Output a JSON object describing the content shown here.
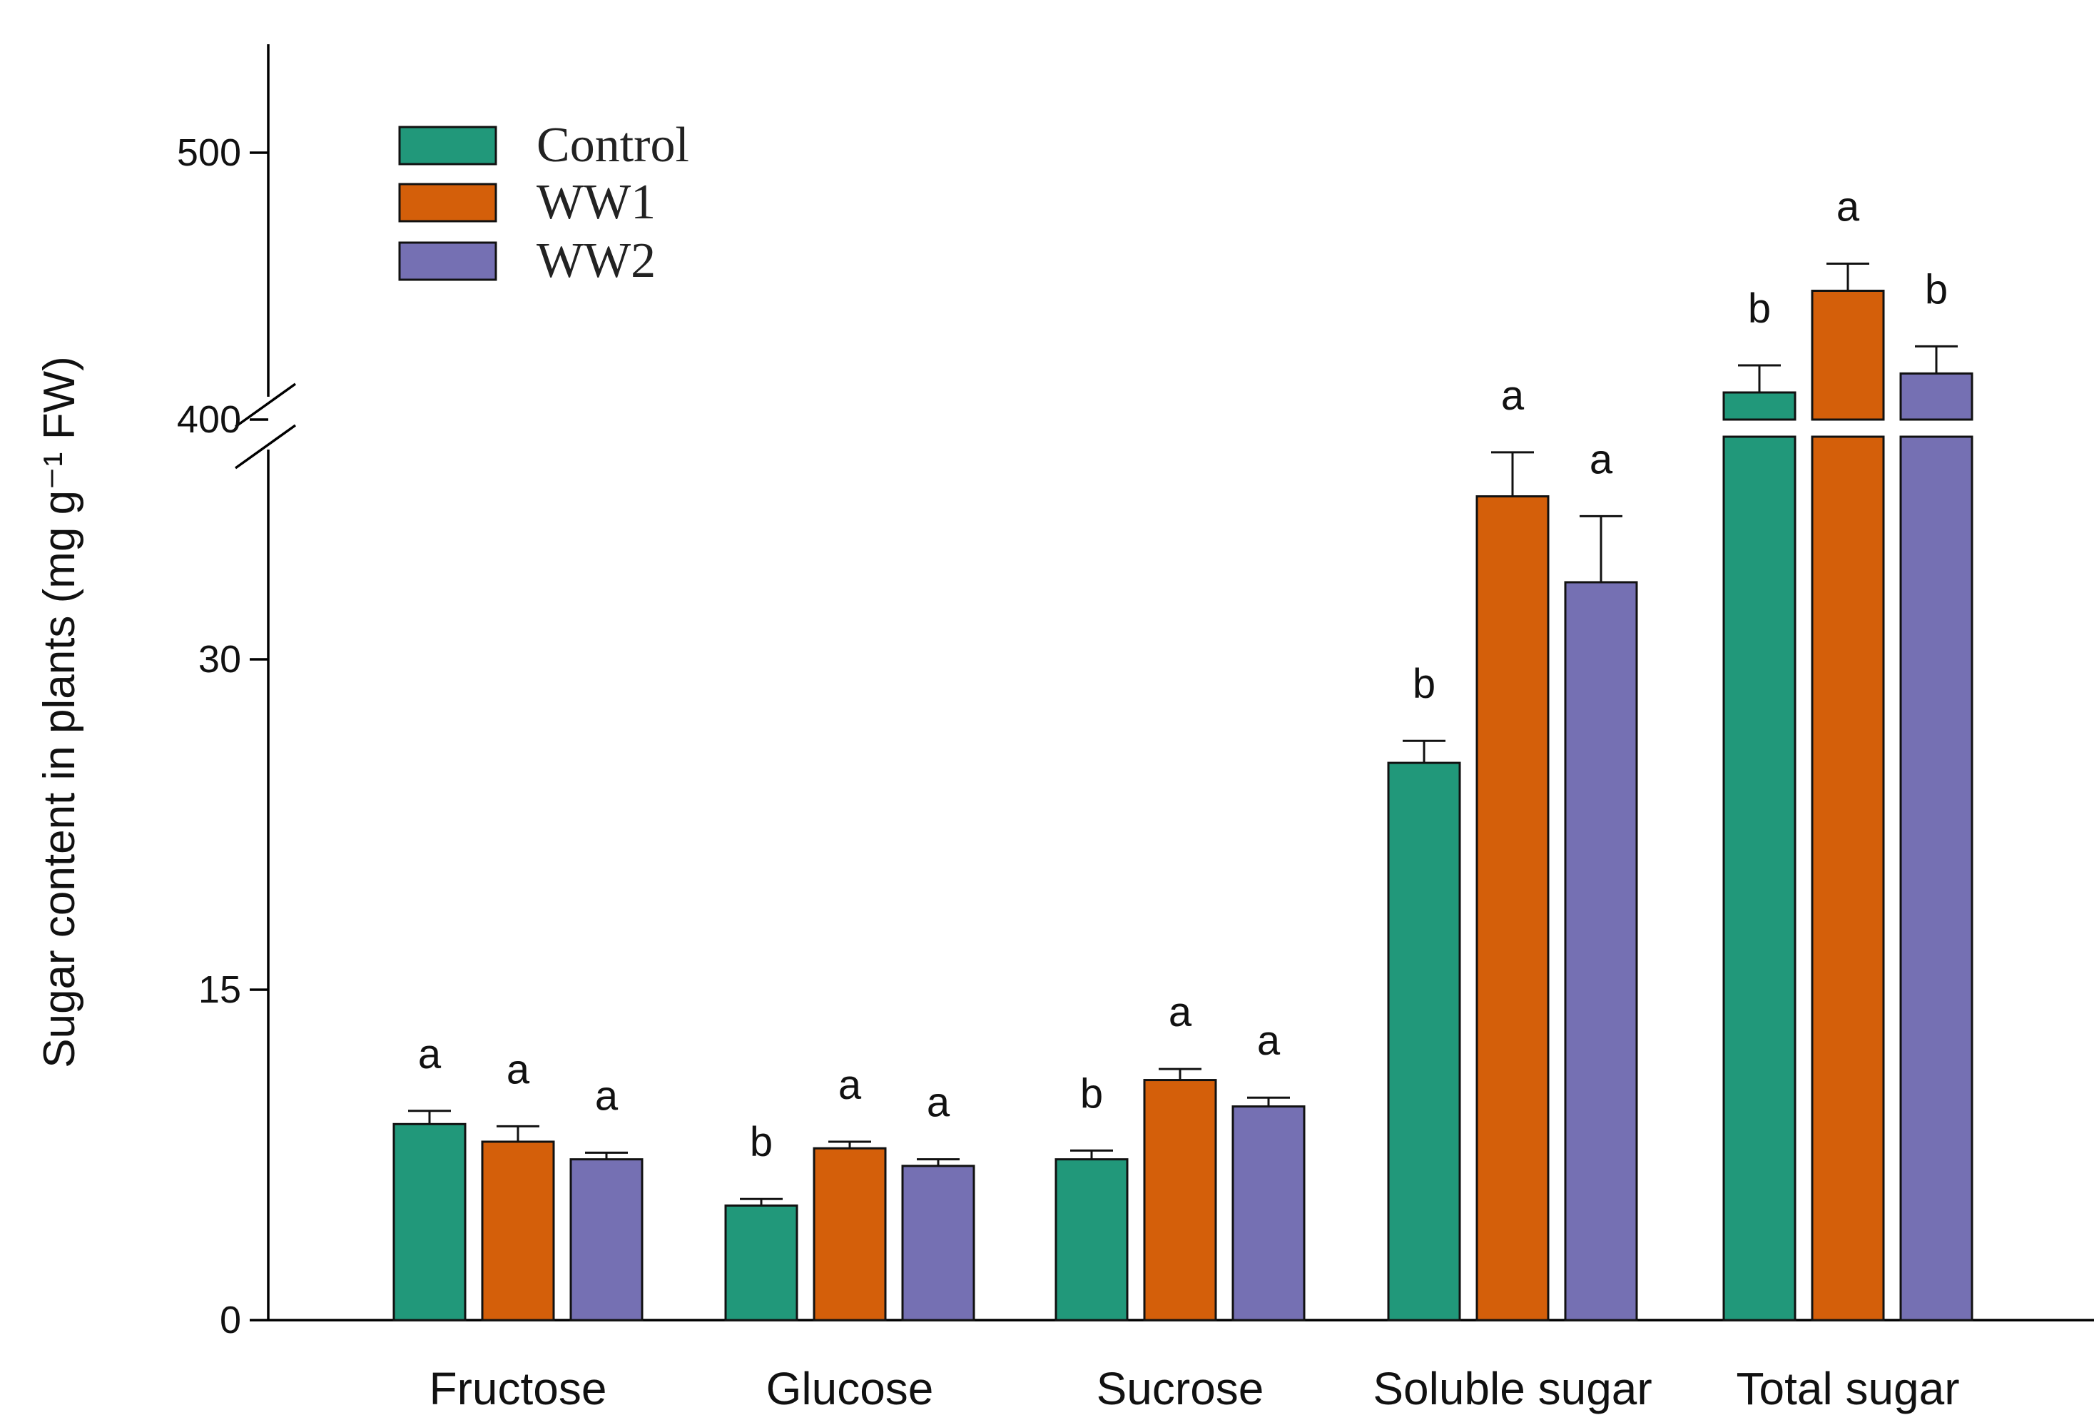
{
  "chart_data": {
    "type": "bar",
    "ylabel": "Sugar content in plants (mg g⁻¹ FW)",
    "y_break": {
      "lower_range": [
        0,
        40
      ],
      "upper_range": [
        400,
        550
      ]
    },
    "yticks": [
      "0",
      "15",
      "30",
      "400",
      "500"
    ],
    "categories": [
      "Fructose",
      "Glucose",
      "Sucrose",
      "Soluble sugar",
      "Total sugar"
    ],
    "series": [
      {
        "name": "Control",
        "color": "#21987a",
        "values": [
          8.9,
          5.2,
          7.3,
          25.3,
          420
        ],
        "errors": [
          0.6,
          0.3,
          0.4,
          1.0,
          20
        ],
        "letters": [
          "a",
          "b",
          "b",
          "b",
          "b"
        ]
      },
      {
        "name": "WW1",
        "color": "#d45f0a",
        "values": [
          8.1,
          7.8,
          10.9,
          37.4,
          495
        ],
        "errors": [
          0.7,
          0.3,
          0.5,
          2.0,
          20
        ],
        "letters": [
          "a",
          "a",
          "a",
          "a",
          "a"
        ]
      },
      {
        "name": "WW2",
        "color": "#7570b3",
        "values": [
          7.3,
          7.0,
          9.7,
          33.5,
          434
        ],
        "errors": [
          0.3,
          0.3,
          0.4,
          3.0,
          20
        ],
        "letters": [
          "a",
          "a",
          "a",
          "a",
          "b"
        ]
      }
    ],
    "legend": {
      "position": "top-left",
      "entries": [
        "Control",
        "WW1",
        "WW2"
      ]
    },
    "grid": false
  }
}
